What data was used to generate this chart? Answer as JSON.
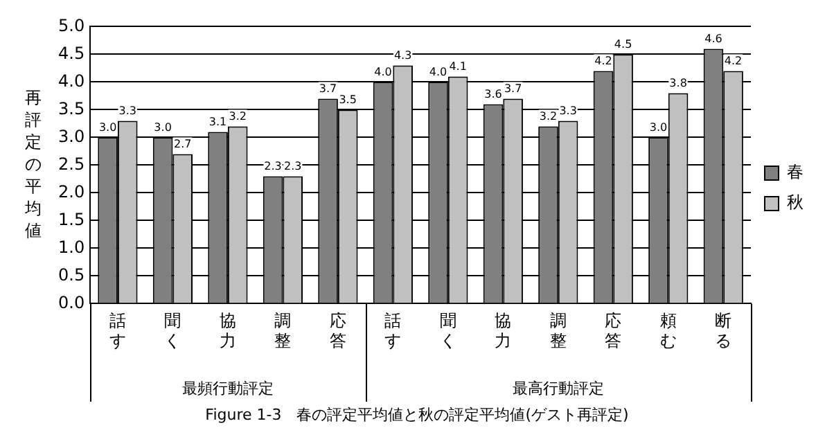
{
  "chart_data": {
    "type": "bar",
    "title": "Figure 1-3　春の評定平均値と秋の評定平均値(ゲスト再評定)",
    "ylabel": "再評定の平均値",
    "categories": [
      "話す",
      "聞く",
      "協力",
      "調整",
      "応答",
      "話す",
      "聞く",
      "協力",
      "調整",
      "応答",
      "頼む",
      "断る"
    ],
    "series": [
      {
        "name": "春",
        "color": "#808080",
        "values": [
          3.0,
          3.0,
          3.1,
          2.3,
          3.7,
          4.0,
          4.0,
          3.6,
          3.2,
          4.2,
          3.0,
          4.6
        ],
        "value_labels": [
          "3.0",
          "3.0",
          "3.1",
          "2.3",
          "3.7",
          "4.0",
          "4.0",
          "3.6",
          "3.2",
          "4.2",
          "3.0",
          "4.6"
        ]
      },
      {
        "name": "秋",
        "color": "#c0c0c0",
        "values": [
          3.3,
          2.7,
          3.2,
          2.3,
          3.5,
          4.3,
          4.1,
          3.7,
          3.3,
          4.5,
          3.8,
          4.2
        ],
        "value_labels": [
          "3.3",
          "2.7",
          "3.2",
          "2.3",
          "3.5",
          "4.3",
          "4.1",
          "3.7",
          "3.3",
          "4.5",
          "3.8",
          "4.2"
        ]
      }
    ],
    "ylim": [
      0,
      5
    ],
    "yticks": [
      {
        "value": 0,
        "label": "0.0"
      },
      {
        "value": 0.5,
        "label": "0.5"
      },
      {
        "value": 1,
        "label": "1.0"
      },
      {
        "value": 1.5,
        "label": "1.5"
      },
      {
        "value": 2,
        "label": "2.0"
      },
      {
        "value": 2.5,
        "label": "2.5"
      },
      {
        "value": 3,
        "label": "3.0"
      },
      {
        "value": 3.5,
        "label": "3.5"
      },
      {
        "value": 4,
        "label": "4.0"
      },
      {
        "value": 4.5,
        "label": "4.5"
      },
      {
        "value": 5,
        "label": "5.0"
      }
    ],
    "grid": "y",
    "legend": "right",
    "annotations": [
      "最頻行動評定",
      "最高行動評定"
    ]
  }
}
